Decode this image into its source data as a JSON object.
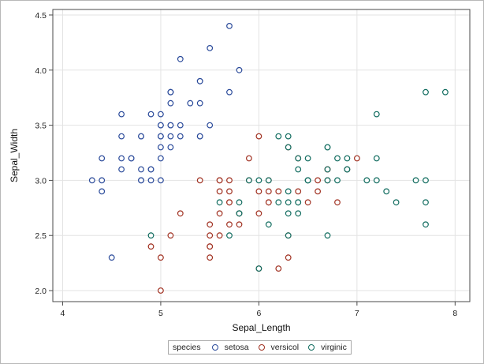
{
  "chart_data": {
    "type": "scatter",
    "xlabel": "Sepal_Length",
    "ylabel": "Sepal_Width",
    "xlim": [
      3.9,
      8.15
    ],
    "ylim": [
      1.9,
      4.55
    ],
    "x_ticks": [
      "4",
      "5",
      "6",
      "7",
      "8"
    ],
    "y_ticks": [
      "2.0",
      "2.5",
      "3.0",
      "3.5",
      "4.0",
      "4.5"
    ],
    "grid": true,
    "legend_title": "species",
    "legend_position": "bottom",
    "colors": {
      "setosa": "#2a4a9a",
      "versicol": "#a03020",
      "virginic": "#0f6b5e"
    },
    "series": [
      {
        "name": "setosa",
        "points": [
          [
            5.1,
            3.5
          ],
          [
            4.9,
            3.0
          ],
          [
            4.7,
            3.2
          ],
          [
            4.6,
            3.1
          ],
          [
            5.0,
            3.6
          ],
          [
            5.4,
            3.9
          ],
          [
            4.6,
            3.4
          ],
          [
            5.0,
            3.4
          ],
          [
            4.4,
            2.9
          ],
          [
            4.9,
            3.1
          ],
          [
            5.4,
            3.7
          ],
          [
            4.8,
            3.4
          ],
          [
            4.8,
            3.0
          ],
          [
            4.3,
            3.0
          ],
          [
            5.8,
            4.0
          ],
          [
            5.7,
            4.4
          ],
          [
            5.4,
            3.9
          ],
          [
            5.1,
            3.5
          ],
          [
            5.7,
            3.8
          ],
          [
            5.1,
            3.8
          ],
          [
            5.4,
            3.4
          ],
          [
            5.1,
            3.7
          ],
          [
            4.6,
            3.6
          ],
          [
            5.1,
            3.3
          ],
          [
            4.8,
            3.4
          ],
          [
            5.0,
            3.0
          ],
          [
            5.0,
            3.4
          ],
          [
            5.2,
            3.5
          ],
          [
            5.2,
            3.4
          ],
          [
            4.7,
            3.2
          ],
          [
            4.8,
            3.1
          ],
          [
            5.4,
            3.4
          ],
          [
            5.2,
            4.1
          ],
          [
            5.5,
            4.2
          ],
          [
            4.9,
            3.1
          ],
          [
            5.0,
            3.2
          ],
          [
            5.5,
            3.5
          ],
          [
            4.9,
            3.6
          ],
          [
            4.4,
            3.0
          ],
          [
            5.1,
            3.4
          ],
          [
            5.0,
            3.5
          ],
          [
            4.5,
            2.3
          ],
          [
            4.4,
            3.2
          ],
          [
            5.0,
            3.5
          ],
          [
            5.1,
            3.8
          ],
          [
            4.8,
            3.0
          ],
          [
            5.1,
            3.8
          ],
          [
            4.6,
            3.2
          ],
          [
            5.3,
            3.7
          ],
          [
            5.0,
            3.3
          ]
        ]
      },
      {
        "name": "versicol",
        "points": [
          [
            7.0,
            3.2
          ],
          [
            6.4,
            3.2
          ],
          [
            6.9,
            3.1
          ],
          [
            5.5,
            2.3
          ],
          [
            6.5,
            2.8
          ],
          [
            5.7,
            2.8
          ],
          [
            6.3,
            3.3
          ],
          [
            4.9,
            2.4
          ],
          [
            6.6,
            2.9
          ],
          [
            5.2,
            2.7
          ],
          [
            5.0,
            2.0
          ],
          [
            5.9,
            3.0
          ],
          [
            6.0,
            2.2
          ],
          [
            6.1,
            2.9
          ],
          [
            5.6,
            2.9
          ],
          [
            6.7,
            3.1
          ],
          [
            5.6,
            3.0
          ],
          [
            5.8,
            2.7
          ],
          [
            6.2,
            2.2
          ],
          [
            5.6,
            2.5
          ],
          [
            5.9,
            3.2
          ],
          [
            6.1,
            2.8
          ],
          [
            6.3,
            2.5
          ],
          [
            6.1,
            2.8
          ],
          [
            6.4,
            2.9
          ],
          [
            6.6,
            3.0
          ],
          [
            6.8,
            2.8
          ],
          [
            6.7,
            3.0
          ],
          [
            6.0,
            2.9
          ],
          [
            5.7,
            2.6
          ],
          [
            5.5,
            2.4
          ],
          [
            5.5,
            2.4
          ],
          [
            5.8,
            2.7
          ],
          [
            6.0,
            2.7
          ],
          [
            5.4,
            3.0
          ],
          [
            6.0,
            3.4
          ],
          [
            6.7,
            3.1
          ],
          [
            6.3,
            2.3
          ],
          [
            5.6,
            3.0
          ],
          [
            5.5,
            2.5
          ],
          [
            5.5,
            2.6
          ],
          [
            6.1,
            3.0
          ],
          [
            5.8,
            2.6
          ],
          [
            5.0,
            2.3
          ],
          [
            5.6,
            2.7
          ],
          [
            5.7,
            3.0
          ],
          [
            5.7,
            2.9
          ],
          [
            6.2,
            2.9
          ],
          [
            5.1,
            2.5
          ],
          [
            5.7,
            2.8
          ]
        ]
      },
      {
        "name": "virginic",
        "points": [
          [
            6.3,
            3.3
          ],
          [
            5.8,
            2.7
          ],
          [
            7.1,
            3.0
          ],
          [
            6.3,
            2.9
          ],
          [
            6.5,
            3.0
          ],
          [
            7.6,
            3.0
          ],
          [
            4.9,
            2.5
          ],
          [
            7.3,
            2.9
          ],
          [
            6.7,
            2.5
          ],
          [
            7.2,
            3.6
          ],
          [
            6.5,
            3.2
          ],
          [
            6.4,
            2.7
          ],
          [
            6.8,
            3.0
          ],
          [
            5.7,
            2.5
          ],
          [
            5.8,
            2.8
          ],
          [
            6.4,
            3.2
          ],
          [
            6.5,
            3.0
          ],
          [
            7.7,
            3.8
          ],
          [
            7.7,
            2.6
          ],
          [
            6.0,
            2.2
          ],
          [
            6.9,
            3.2
          ],
          [
            5.6,
            2.8
          ],
          [
            7.7,
            2.8
          ],
          [
            6.3,
            2.7
          ],
          [
            6.7,
            3.3
          ],
          [
            7.2,
            3.2
          ],
          [
            6.2,
            2.8
          ],
          [
            6.1,
            3.0
          ],
          [
            6.4,
            2.8
          ],
          [
            7.2,
            3.0
          ],
          [
            7.4,
            2.8
          ],
          [
            7.9,
            3.8
          ],
          [
            6.4,
            2.8
          ],
          [
            6.3,
            2.8
          ],
          [
            6.1,
            2.6
          ],
          [
            7.7,
            3.0
          ],
          [
            6.3,
            3.4
          ],
          [
            6.4,
            3.1
          ],
          [
            6.0,
            3.0
          ],
          [
            6.9,
            3.1
          ],
          [
            6.7,
            3.1
          ],
          [
            6.9,
            3.1
          ],
          [
            5.8,
            2.7
          ],
          [
            6.8,
            3.2
          ],
          [
            6.7,
            3.3
          ],
          [
            6.7,
            3.0
          ],
          [
            6.3,
            2.5
          ],
          [
            6.5,
            3.0
          ],
          [
            6.2,
            3.4
          ],
          [
            5.9,
            3.0
          ]
        ]
      }
    ]
  }
}
